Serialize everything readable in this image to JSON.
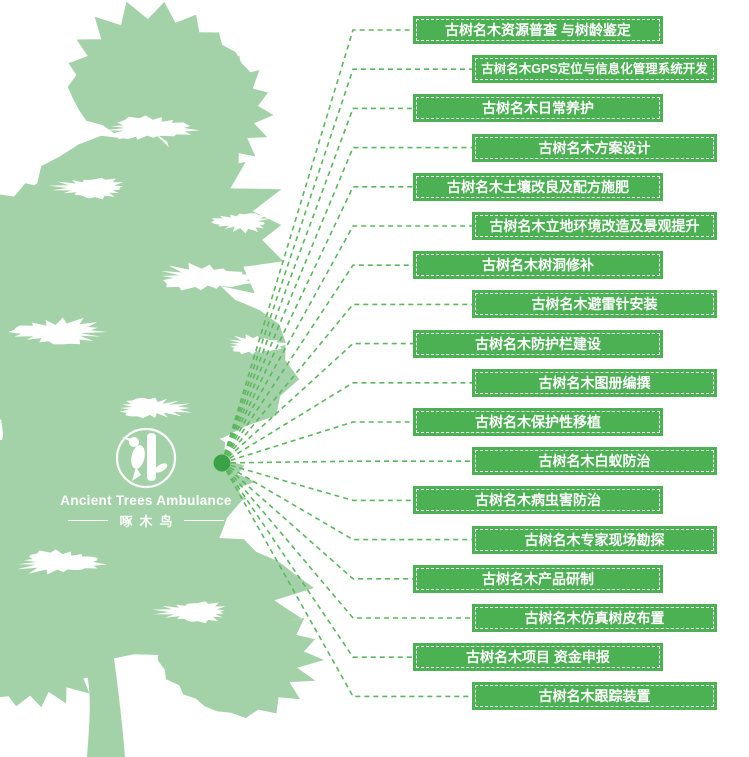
{
  "colors": {
    "tree": "#a4d2a8",
    "label_bg": "#4bb152",
    "connector": "#5cb75f",
    "dot": "#3aa244",
    "label_text": "#ffffff",
    "logo_text": "#ffffff"
  },
  "logo": {
    "title": "Ancient Trees Ambulance",
    "subtitle": "啄木鸟"
  },
  "services": [
    "古树名木资源普查 与树龄鉴定",
    "古树名木GPS定位与信息化管理系统开发",
    "古树名木日常养护",
    "古树名木方案设计",
    "古树名木土壤改良及配方施肥",
    "古树名木立地环境改造及景观提升",
    "古树名木树洞修补",
    "古树名木避雷针安装",
    "古树名木防护栏建设",
    "古树名木图册编撰",
    "古树名木保护性移植",
    "古树名木白蚁防治",
    "古树名木病虫害防治",
    "古树名木专家现场勘探",
    "古树名木产品研制",
    "古树名木仿真树皮布置",
    "古树名木项目 资金申报",
    "古树名木跟踪装置"
  ]
}
